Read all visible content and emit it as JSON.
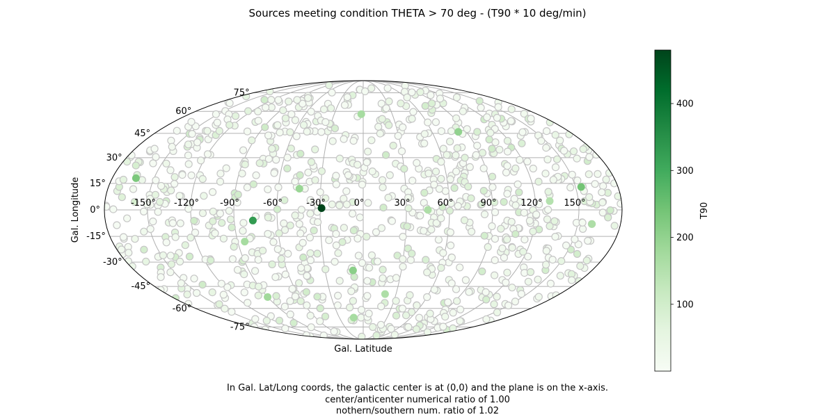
{
  "chart_data": {
    "type": "scatter",
    "projection": "mollweide",
    "title": "Sources meeting condition THETA > 70 deg - (T90 * 10 deg/min)",
    "xlabel": "Gal. Latitude",
    "ylabel": "Gal. Longitude",
    "x_ticks": [
      "-150°",
      "-120°",
      "-90°",
      "-60°",
      "-30°",
      "0°",
      "30°",
      "60°",
      "90°",
      "120°",
      "150°"
    ],
    "y_ticks": [
      "75°",
      "60°",
      "45°",
      "30°",
      "15°",
      "0°",
      "-15°",
      "-30°",
      "-45°",
      "-60°",
      "-75°"
    ],
    "grid": true,
    "colorbar": {
      "label": "T90",
      "colormap": "Greens",
      "range": [
        0,
        480
      ],
      "ticks": [
        "100",
        "200",
        "300",
        "400"
      ]
    },
    "n_points": 1000,
    "highlighted_points": [
      {
        "lon_deg": -29,
        "lat_deg": 1,
        "t90": 480
      },
      {
        "lon_deg": -77,
        "lat_deg": -6,
        "t90": 330
      },
      {
        "lon_deg": 154,
        "lat_deg": 13,
        "t90": 240
      },
      {
        "lon_deg": -163,
        "lat_deg": 18,
        "t90": 230
      },
      {
        "lon_deg": 83,
        "lat_deg": 46,
        "t90": 200
      },
      {
        "lon_deg": -45,
        "lat_deg": 12,
        "t90": 190
      },
      {
        "lon_deg": -8,
        "lat_deg": -35,
        "t90": 210
      },
      {
        "lon_deg": -2,
        "lat_deg": 58,
        "t90": 170
      },
      {
        "lon_deg": -85,
        "lat_deg": -18,
        "t90": 170
      },
      {
        "lon_deg": -90,
        "lat_deg": -52,
        "t90": 180
      },
      {
        "lon_deg": 20,
        "lat_deg": -50,
        "t90": 160
      },
      {
        "lon_deg": 160,
        "lat_deg": -8,
        "t90": 160
      },
      {
        "lon_deg": -12,
        "lat_deg": -67,
        "t90": 170
      },
      {
        "lon_deg": 45,
        "lat_deg": 0,
        "t90": 160
      },
      {
        "lon_deg": 130,
        "lat_deg": 5,
        "t90": 150
      }
    ]
  },
  "caption": {
    "line1": "In Gal. Lat/Long coords, the galactic center is at (0,0) and the plane is on the x-axis.",
    "line2": "center/anticenter numerical ratio of 1.00",
    "line3": "nothern/southern num. ratio of 1.02"
  },
  "colors": {
    "grid": "#b0b0b0",
    "marker_edge": "#c6c6c6",
    "cmap_low": "#f7fcf5",
    "cmap_high": "#00441b"
  }
}
